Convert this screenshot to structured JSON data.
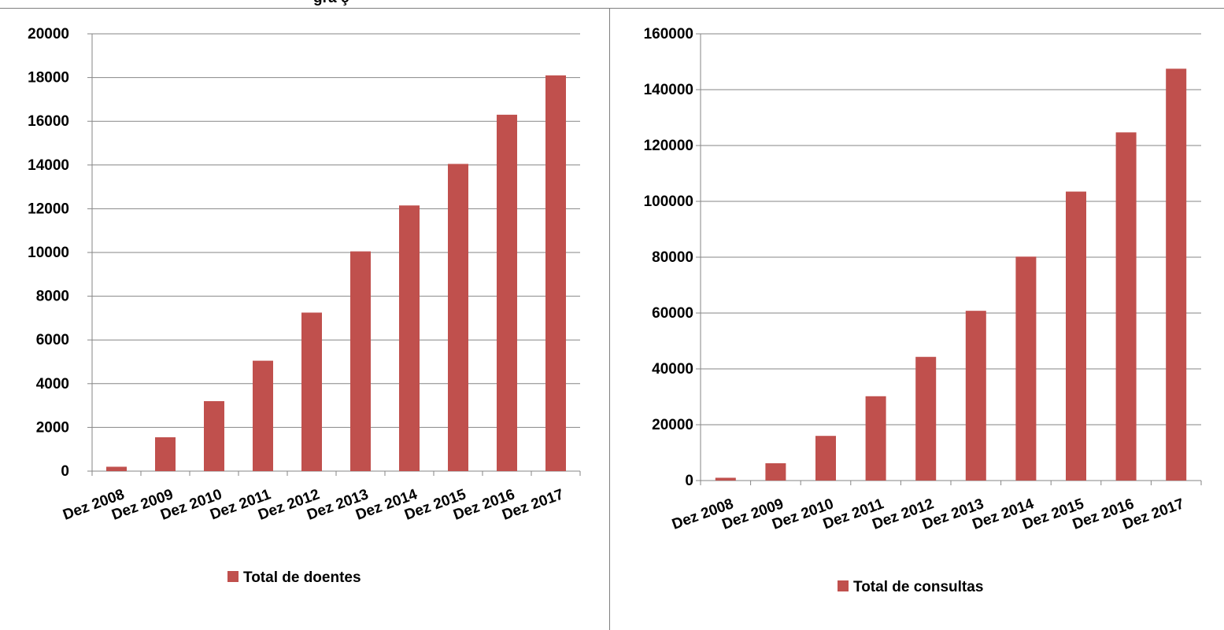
{
  "header_fragment": "gra          ç",
  "colors": {
    "bar": "#c0504d",
    "grid": "#868686",
    "axis": "#868686",
    "frame": "#7f7f7f"
  },
  "chart_data": [
    {
      "type": "bar",
      "categories": [
        "Dez 2008",
        "Dez 2009",
        "Dez 2010",
        "Dez 2011",
        "Dez 2012",
        "Dez 2013",
        "Dez 2014",
        "Dez 2015",
        "Dez 2016",
        "Dez 2017"
      ],
      "series": [
        {
          "name": "Total de doentes",
          "values": [
            200,
            1550,
            3200,
            5050,
            7250,
            10050,
            12150,
            14050,
            16300,
            18100
          ]
        }
      ],
      "ylim": [
        0,
        20000
      ],
      "yticks": [
        "0",
        "2000",
        "4000",
        "6000",
        "8000",
        "10000",
        "12000",
        "14000",
        "16000",
        "18000",
        "20000"
      ],
      "grid": true,
      "legend": "bottom"
    },
    {
      "type": "bar",
      "categories": [
        "Dez 2008",
        "Dez 2009",
        "Dez 2010",
        "Dez 2011",
        "Dez 2012",
        "Dez 2013",
        "Dez 2014",
        "Dez 2015",
        "Dez 2016",
        "Dez 2017"
      ],
      "series": [
        {
          "name": "Total de consultas",
          "values": [
            1000,
            6200,
            16000,
            30200,
            44300,
            60800,
            80200,
            103500,
            124700,
            147500
          ]
        }
      ],
      "ylim": [
        0,
        160000
      ],
      "yticks": [
        "0",
        "20000",
        "40000",
        "60000",
        "80000",
        "100000",
        "120000",
        "140000",
        "160000"
      ],
      "grid": true,
      "legend": "bottom"
    }
  ]
}
